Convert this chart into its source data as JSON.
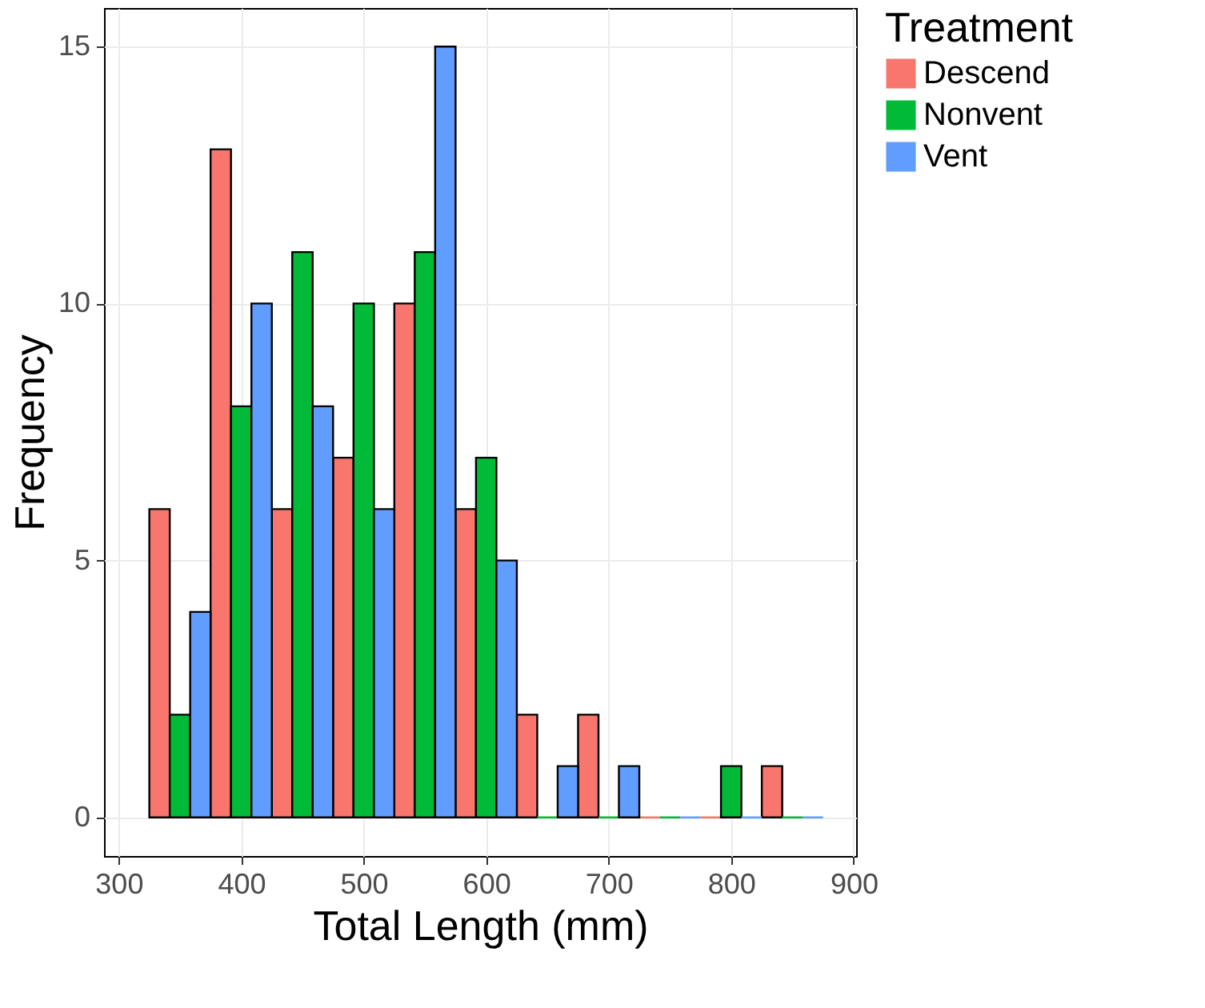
{
  "chart_data": {
    "type": "histogram",
    "xlabel": "Total Length (mm)",
    "ylabel": "Frequency",
    "legend_title": "Treatment",
    "bins": [
      325,
      375,
      425,
      475,
      525,
      575,
      625,
      675,
      725,
      775,
      825,
      875
    ],
    "series": [
      {
        "name": "Descend",
        "color": "#f8766d",
        "values": [
          6,
          13,
          6,
          7,
          10,
          6,
          2,
          2,
          0,
          0,
          1
        ]
      },
      {
        "name": "Nonvent",
        "color": "#00ba38",
        "values": [
          2,
          8,
          11,
          10,
          11,
          7,
          0,
          0,
          0,
          1,
          0
        ]
      },
      {
        "name": "Vent",
        "color": "#619cff",
        "values": [
          4,
          10,
          8,
          6,
          15,
          5,
          1,
          1,
          0,
          0,
          0
        ]
      }
    ],
    "xlim": [
      288,
      902
    ],
    "ylim": [
      -0.75,
      15.75
    ],
    "xticks": [
      300,
      400,
      500,
      600,
      700,
      800,
      900
    ],
    "yticks": [
      0,
      5,
      10,
      15
    ],
    "grid": true,
    "legend": "right"
  }
}
